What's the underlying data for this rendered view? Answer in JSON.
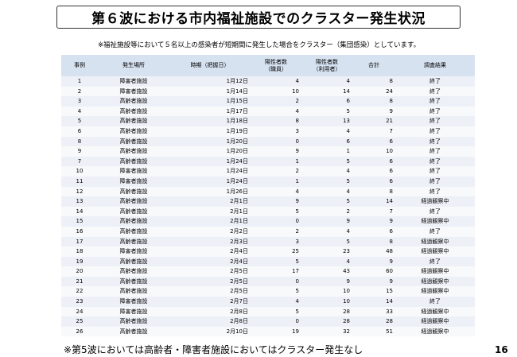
{
  "title": "第６波における市内福祉施設でのクラスター発生状況",
  "note": "※福祉施設等において５名以上の感染者が短期間に発生した場合をクラスター（集団感染）としています。",
  "table": {
    "headers": {
      "case": "事例",
      "place": "発生場所",
      "date": "時期（把握日）",
      "staff_line1": "陽性者数",
      "staff_line2": "（職員）",
      "users_line1": "陽性者数",
      "users_line2": "（利用者）",
      "total": "合計",
      "result": "調査結果"
    },
    "rows": [
      {
        "case": "1",
        "place": "障害者施設",
        "date": "1月12日",
        "staff": "4",
        "users": "4",
        "total": "8",
        "result": "終了"
      },
      {
        "case": "2",
        "place": "障害者施設",
        "date": "1月14日",
        "staff": "10",
        "users": "14",
        "total": "24",
        "result": "終了"
      },
      {
        "case": "3",
        "place": "高齢者施設",
        "date": "1月15日",
        "staff": "2",
        "users": "6",
        "total": "8",
        "result": "終了"
      },
      {
        "case": "4",
        "place": "高齢者施設",
        "date": "1月17日",
        "staff": "4",
        "users": "5",
        "total": "9",
        "result": "終了"
      },
      {
        "case": "5",
        "place": "高齢者施設",
        "date": "1月18日",
        "staff": "8",
        "users": "13",
        "total": "21",
        "result": "終了"
      },
      {
        "case": "6",
        "place": "高齢者施設",
        "date": "1月19日",
        "staff": "3",
        "users": "4",
        "total": "7",
        "result": "終了"
      },
      {
        "case": "8",
        "place": "高齢者施設",
        "date": "1月20日",
        "staff": "0",
        "users": "6",
        "total": "6",
        "result": "終了"
      },
      {
        "case": "9",
        "place": "高齢者施設",
        "date": "1月20日",
        "staff": "9",
        "users": "1",
        "total": "10",
        "result": "終了"
      },
      {
        "case": "7",
        "place": "高齢者施設",
        "date": "1月24日",
        "staff": "1",
        "users": "5",
        "total": "6",
        "result": "終了"
      },
      {
        "case": "10",
        "place": "障害者施設",
        "date": "1月24日",
        "staff": "2",
        "users": "4",
        "total": "6",
        "result": "終了"
      },
      {
        "case": "11",
        "place": "障害者施設",
        "date": "1月24日",
        "staff": "1",
        "users": "5",
        "total": "6",
        "result": "終了"
      },
      {
        "case": "12",
        "place": "高齢者施設",
        "date": "1月26日",
        "staff": "4",
        "users": "4",
        "total": "8",
        "result": "終了"
      },
      {
        "case": "13",
        "place": "高齢者施設",
        "date": "2月1日",
        "staff": "9",
        "users": "5",
        "total": "14",
        "result": "経過観察中"
      },
      {
        "case": "14",
        "place": "高齢者施設",
        "date": "2月1日",
        "staff": "5",
        "users": "2",
        "total": "7",
        "result": "終了"
      },
      {
        "case": "15",
        "place": "高齢者施設",
        "date": "2月1日",
        "staff": "0",
        "users": "9",
        "total": "9",
        "result": "経過観察中"
      },
      {
        "case": "16",
        "place": "高齢者施設",
        "date": "2月2日",
        "staff": "2",
        "users": "4",
        "total": "6",
        "result": "終了"
      },
      {
        "case": "17",
        "place": "高齢者施設",
        "date": "2月3日",
        "staff": "3",
        "users": "5",
        "total": "8",
        "result": "経過観察中"
      },
      {
        "case": "18",
        "place": "障害者施設",
        "date": "2月4日",
        "staff": "25",
        "users": "23",
        "total": "48",
        "result": "経過観察中"
      },
      {
        "case": "19",
        "place": "高齢者施設",
        "date": "2月4日",
        "staff": "5",
        "users": "4",
        "total": "9",
        "result": "終了"
      },
      {
        "case": "20",
        "place": "高齢者施設",
        "date": "2月5日",
        "staff": "17",
        "users": "43",
        "total": "60",
        "result": "経過観察中"
      },
      {
        "case": "21",
        "place": "高齢者施設",
        "date": "2月5日",
        "staff": "0",
        "users": "9",
        "total": "9",
        "result": "経過観察中"
      },
      {
        "case": "22",
        "place": "高齢者施設",
        "date": "2月5日",
        "staff": "5",
        "users": "10",
        "total": "15",
        "result": "経過観察中"
      },
      {
        "case": "23",
        "place": "障害者施設",
        "date": "2月7日",
        "staff": "4",
        "users": "10",
        "total": "14",
        "result": "終了"
      },
      {
        "case": "24",
        "place": "障害者施設",
        "date": "2月8日",
        "staff": "5",
        "users": "28",
        "total": "33",
        "result": "経過観察中"
      },
      {
        "case": "25",
        "place": "高齢者施設",
        "date": "2月8日",
        "staff": "0",
        "users": "28",
        "total": "28",
        "result": "経過観察中"
      },
      {
        "case": "26",
        "place": "高齢者施設",
        "date": "2月10日",
        "staff": "19",
        "users": "32",
        "total": "51",
        "result": "経過観察中"
      }
    ]
  },
  "footnote": "※第5波においては高齢者・障害者施設においてはクラスター発生なし",
  "page_number": "16"
}
